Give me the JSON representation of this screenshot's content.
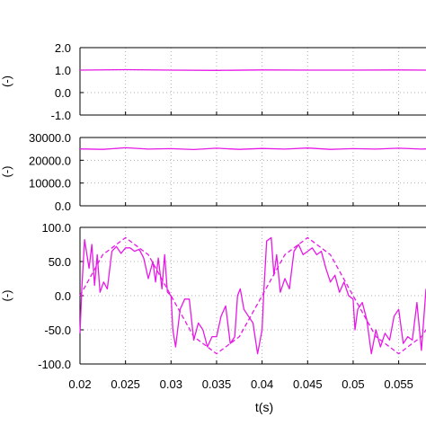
{
  "chart_data": [
    {
      "type": "line",
      "ylabel": "(-)",
      "ylim": [
        -1.0,
        2.0
      ],
      "yticks": [
        "-1.0",
        "0.0",
        "1.0",
        "2.0"
      ],
      "xlim": [
        0.02,
        0.058
      ],
      "grid": true,
      "series": [
        {
          "style": "solid",
          "color": "#e619e6",
          "x": [
            0.02,
            0.025,
            0.03,
            0.035,
            0.04,
            0.045,
            0.05,
            0.055,
            0.058
          ],
          "values": [
            1.0,
            1.02,
            1.0,
            0.99,
            1.01,
            1.0,
            1.0,
            1.01,
            1.0
          ]
        }
      ]
    },
    {
      "type": "line",
      "ylabel": "(-)",
      "ylim": [
        0.0,
        30000.0
      ],
      "yticks": [
        "0.0",
        "10000.0",
        "20000.0",
        "30000.0"
      ],
      "xlim": [
        0.02,
        0.058
      ],
      "grid": true,
      "series": [
        {
          "style": "solid",
          "color": "#e619e6",
          "x": [
            0.02,
            0.0225,
            0.025,
            0.0275,
            0.03,
            0.0325,
            0.035,
            0.0375,
            0.04,
            0.0425,
            0.045,
            0.0475,
            0.05,
            0.0525,
            0.055,
            0.0575,
            0.058
          ],
          "values": [
            25000,
            24800,
            25500,
            24900,
            25100,
            24700,
            25300,
            24800,
            25200,
            24900,
            25400,
            24800,
            25100,
            24900,
            25300,
            24900,
            25000
          ]
        }
      ]
    },
    {
      "type": "line",
      "ylabel": "(-)",
      "xlabel": "t(s)",
      "ylim": [
        -100.0,
        100.0
      ],
      "yticks": [
        "-100.0",
        "-50.0",
        "0.0",
        "50.0",
        "100.0"
      ],
      "xlim": [
        0.02,
        0.058
      ],
      "xticks": [
        "0.02",
        "0.025",
        "0.03",
        "0.035",
        "0.04",
        "0.045",
        "0.05",
        "0.055"
      ],
      "grid": true,
      "series": [
        {
          "style": "solid",
          "color": "#e619e6",
          "x": [
            0.02,
            0.0202,
            0.0205,
            0.021,
            0.0213,
            0.0216,
            0.0219,
            0.0222,
            0.0226,
            0.023,
            0.0235,
            0.024,
            0.0245,
            0.025,
            0.0255,
            0.026,
            0.0265,
            0.027,
            0.0275,
            0.028,
            0.0283,
            0.0286,
            0.029,
            0.0293,
            0.0296,
            0.03,
            0.0302,
            0.0305,
            0.031,
            0.0315,
            0.032,
            0.0325,
            0.033,
            0.0335,
            0.034,
            0.0345,
            0.035,
            0.0355,
            0.036,
            0.0365,
            0.037,
            0.0373,
            0.0376,
            0.038,
            0.0385,
            0.039,
            0.0395,
            0.04,
            0.0402,
            0.0405,
            0.041,
            0.0413,
            0.0416,
            0.042,
            0.0425,
            0.043,
            0.0435,
            0.044,
            0.0445,
            0.045,
            0.0455,
            0.046,
            0.0465,
            0.047,
            0.0475,
            0.048,
            0.0485,
            0.049,
            0.0495,
            0.05,
            0.0502,
            0.0505,
            0.051,
            0.0515,
            0.052,
            0.0525,
            0.053,
            0.0535,
            0.054,
            0.0545,
            0.055,
            0.0555,
            0.056,
            0.0565,
            0.057,
            0.0575,
            0.058
          ],
          "values": [
            -55,
            10,
            82,
            40,
            75,
            15,
            60,
            5,
            20,
            10,
            65,
            72,
            62,
            70,
            70,
            65,
            68,
            55,
            25,
            50,
            20,
            55,
            10,
            60,
            5,
            0,
            -50,
            -75,
            -20,
            -5,
            -5,
            -65,
            -40,
            -50,
            -75,
            -60,
            -60,
            -30,
            -15,
            -70,
            -60,
            0,
            10,
            -20,
            -30,
            -40,
            -85,
            -50,
            10,
            80,
            85,
            30,
            60,
            5,
            25,
            10,
            65,
            75,
            60,
            65,
            70,
            60,
            65,
            40,
            20,
            30,
            5,
            20,
            0,
            -5,
            -50,
            -20,
            -10,
            -35,
            -85,
            -50,
            -75,
            -55,
            -65,
            -30,
            -20,
            -70,
            -60,
            -65,
            -10,
            -80,
            10
          ]
        },
        {
          "style": "dashed",
          "color": "#e619e6",
          "x": [
            0.02,
            0.0225,
            0.025,
            0.0275,
            0.03,
            0.0325,
            0.035,
            0.0375,
            0.04,
            0.0425,
            0.045,
            0.0475,
            0.05,
            0.0525,
            0.055,
            0.0575,
            0.058
          ],
          "values": [
            0,
            60,
            85,
            60,
            0,
            -60,
            -85,
            -60,
            0,
            60,
            85,
            60,
            0,
            -60,
            -85,
            -60,
            -50
          ]
        }
      ]
    }
  ]
}
